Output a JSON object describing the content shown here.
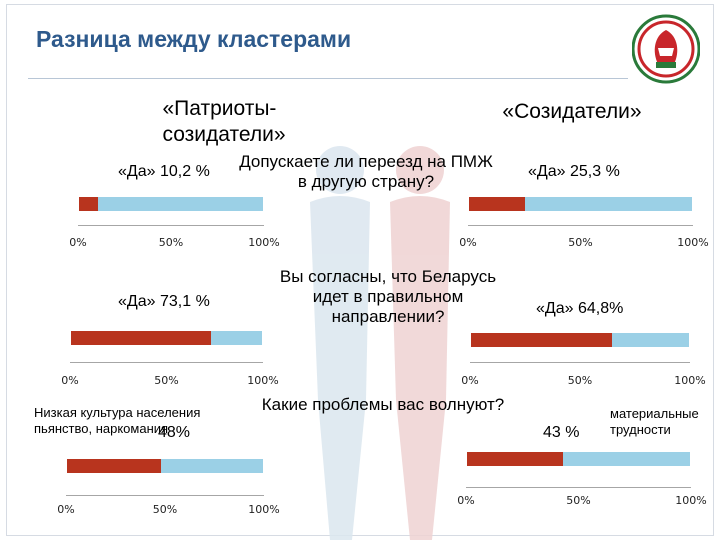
{
  "slide": {
    "title": "Разница между кластерами",
    "clusters": {
      "left": "«Патриоты-\nсозидатели»",
      "right": "«Созидатели»"
    },
    "questions": [
      "Допускаете ли переезд на ПМЖ\nв другую страну?",
      "Вы согласны, что Беларусь\nидет в правильном\nнаправлении?",
      "Какие проблемы вас волнуют?"
    ],
    "labels": {
      "l1": "«Да» 10,2 %",
      "r1": "«Да» 25,3 %",
      "l2": "«Да» 73,1 %",
      "r2": "«Да» 64,8%",
      "l3_note": "Низкая культура населения\nпьянство, наркомания",
      "l3_value": "48%",
      "r3_value": "43 %",
      "r3_note": "материальные\nтрудности"
    }
  },
  "colors": {
    "yes": "#b8341e",
    "rest": "#9bd0e6",
    "title": "#2e5a8c"
  },
  "chart_data": [
    {
      "type": "bar",
      "orientation": "horizontal",
      "stacked": true,
      "title": "«Да» 10,2 %",
      "values": [
        10.2
      ],
      "xlim": [
        0,
        100
      ],
      "ticks": [
        "0%",
        "50%",
        "100%"
      ]
    },
    {
      "type": "bar",
      "orientation": "horizontal",
      "stacked": true,
      "title": "«Да» 25,3 %",
      "values": [
        25.3
      ],
      "xlim": [
        0,
        100
      ],
      "ticks": [
        "0%",
        "50%",
        "100%"
      ]
    },
    {
      "type": "bar",
      "orientation": "horizontal",
      "stacked": true,
      "title": "«Да» 73,1 %",
      "values": [
        73.1
      ],
      "xlim": [
        0,
        100
      ],
      "ticks": [
        "0%",
        "50%",
        "100%"
      ]
    },
    {
      "type": "bar",
      "orientation": "horizontal",
      "stacked": true,
      "title": "«Да» 64,8%",
      "values": [
        64.8
      ],
      "xlim": [
        0,
        100
      ],
      "ticks": [
        "0%",
        "50%",
        "100%"
      ]
    },
    {
      "type": "bar",
      "orientation": "horizontal",
      "stacked": true,
      "title": "48%",
      "values": [
        48
      ],
      "xlim": [
        0,
        100
      ],
      "ticks": [
        "0%",
        "50%",
        "100%"
      ]
    },
    {
      "type": "bar",
      "orientation": "horizontal",
      "stacked": true,
      "title": "43 %",
      "values": [
        43
      ],
      "xlim": [
        0,
        100
      ],
      "ticks": [
        "0%",
        "50%",
        "100%"
      ]
    }
  ]
}
